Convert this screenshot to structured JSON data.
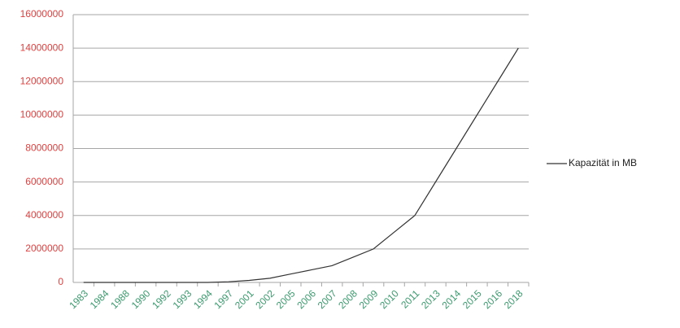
{
  "chart_data": {
    "type": "line",
    "categories": [
      "1983",
      "1984",
      "1988",
      "1990",
      "1992",
      "1993",
      "1994",
      "1997",
      "2001",
      "2002",
      "2005",
      "2006",
      "2007",
      "2008",
      "2009",
      "2010",
      "2011",
      "2013",
      "2014",
      "2015",
      "2016",
      "2018"
    ],
    "series": [
      {
        "name": "Kapazität in MB",
        "color": "#333333",
        "values": [
          5,
          10,
          20,
          40,
          100,
          200,
          500,
          40000,
          120000,
          250000,
          500000,
          750000,
          1000000,
          1500000,
          2000000,
          3000000,
          4000000,
          6000000,
          8000000,
          10000000,
          12000000,
          14000000
        ]
      }
    ],
    "ylim": [
      0,
      16000000
    ],
    "yticks": [
      0,
      2000000,
      4000000,
      6000000,
      8000000,
      10000000,
      12000000,
      14000000,
      16000000
    ],
    "grid": true,
    "legend": "right",
    "ytick_color": "#e0403f",
    "xtick_color": "#3a9a6e"
  }
}
